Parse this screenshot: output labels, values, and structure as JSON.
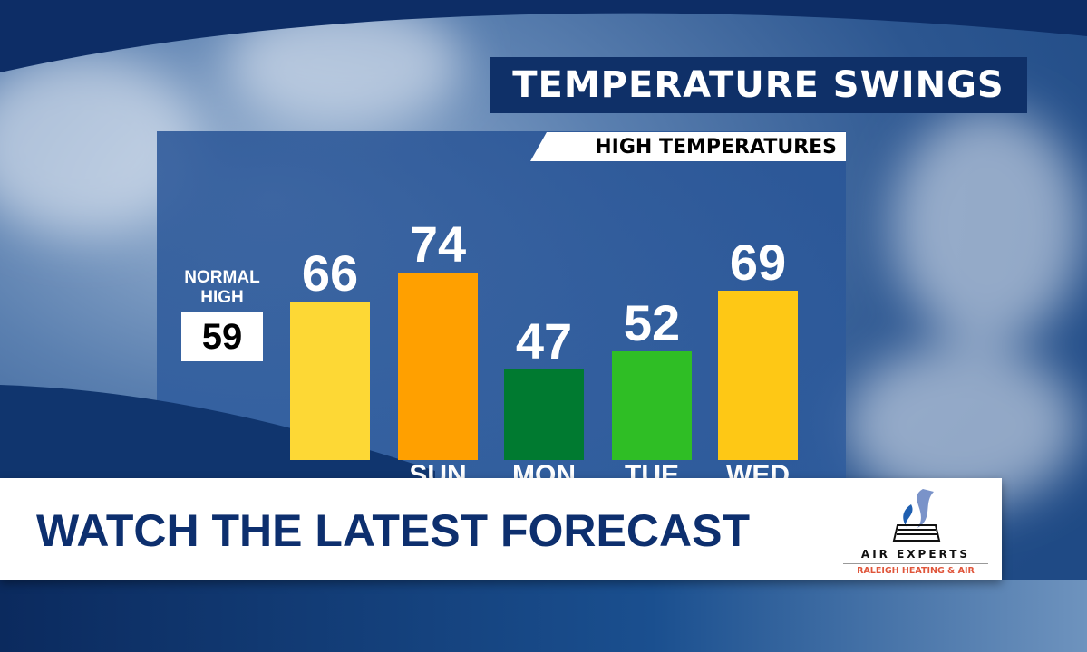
{
  "title": "TEMPERATURE SWINGS",
  "subtitle": "HIGH TEMPERATURES",
  "normal_high": {
    "label_line1": "NORMAL",
    "label_line2": "HIGH",
    "value": "59"
  },
  "chart_data": {
    "type": "bar",
    "title": "HIGH TEMPERATURES",
    "categories": [
      "",
      "SUN",
      "MON",
      "TUE",
      "WED"
    ],
    "values": [
      66,
      74,
      47,
      52,
      69
    ],
    "colors": [
      "#fdd835",
      "#ffa000",
      "#007a30",
      "#2fbe25",
      "#fec815"
    ],
    "grid": false
  },
  "banner": {
    "text": "WATCH THE LATEST FORECAST"
  },
  "sponsor": {
    "name": "AIR EXPERTS",
    "tagline": "RALEIGH HEATING & AIR"
  }
}
